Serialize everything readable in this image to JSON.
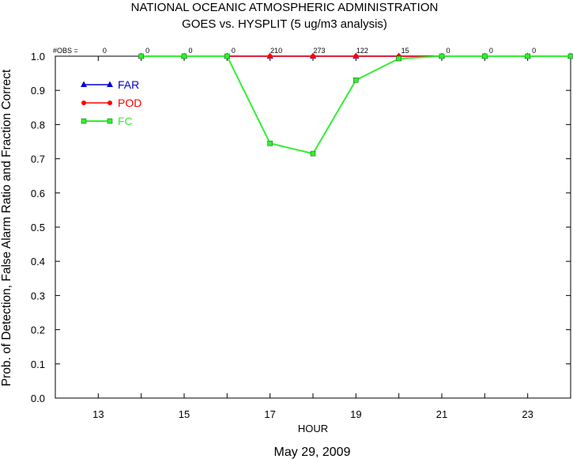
{
  "chart_data": {
    "type": "line",
    "title": "NATIONAL OCEANIC ATMOSPHERIC ADMINISTRATION",
    "subtitle": "GOES vs. HYSPLIT  (5 ug/m3 analysis)",
    "xlabel": "HOUR",
    "ylabel": "Prob. of Detection, False Alarm Ratio and Fraction Correct",
    "date_label": "May 29, 2009",
    "obs_label": "#OBS =",
    "xlim": [
      12,
      24
    ],
    "ylim": [
      0,
      1
    ],
    "x_ticks": [
      13,
      15,
      17,
      19,
      21,
      23
    ],
    "y_ticks": [
      "0.0",
      "0.1",
      "0.2",
      "0.3",
      "0.4",
      "0.5",
      "0.6",
      "0.7",
      "0.8",
      "0.9",
      "1.0"
    ],
    "obs": [
      {
        "x": 13,
        "count": "0"
      },
      {
        "x": 14,
        "count": "0"
      },
      {
        "x": 15,
        "count": "0"
      },
      {
        "x": 16,
        "count": "0"
      },
      {
        "x": 17,
        "count": "210"
      },
      {
        "x": 18,
        "count": "273"
      },
      {
        "x": 19,
        "count": "122"
      },
      {
        "x": 20,
        "count": "15"
      },
      {
        "x": 21,
        "count": "0"
      },
      {
        "x": 22,
        "count": "0"
      },
      {
        "x": 23,
        "count": "0"
      }
    ],
    "legend_position": "top-left",
    "series": [
      {
        "name": "FAR",
        "color": "#0000cc",
        "marker": "triangle",
        "x": [
          14,
          15,
          16,
          17,
          18,
          19,
          20,
          21,
          22,
          23,
          24
        ],
        "y": [
          1.0,
          1.0,
          1.0,
          1.0,
          1.0,
          1.0,
          1.0,
          1.0,
          1.0,
          1.0,
          1.0
        ]
      },
      {
        "name": "POD",
        "color": "#ff0000",
        "marker": "circle",
        "x": [
          14,
          15,
          16,
          17,
          18,
          19,
          20,
          21,
          22,
          23,
          24
        ],
        "y": [
          1.0,
          1.0,
          1.0,
          1.0,
          1.0,
          1.0,
          1.0,
          1.0,
          1.0,
          1.0,
          1.0
        ]
      },
      {
        "name": "FC",
        "color": "#33ee33",
        "marker": "square",
        "x": [
          14,
          15,
          16,
          17,
          18,
          19,
          20,
          21,
          22,
          23,
          24
        ],
        "y": [
          1.0,
          1.0,
          1.0,
          0.745,
          0.715,
          0.93,
          0.993,
          1.0,
          1.0,
          1.0,
          1.0
        ]
      }
    ]
  }
}
